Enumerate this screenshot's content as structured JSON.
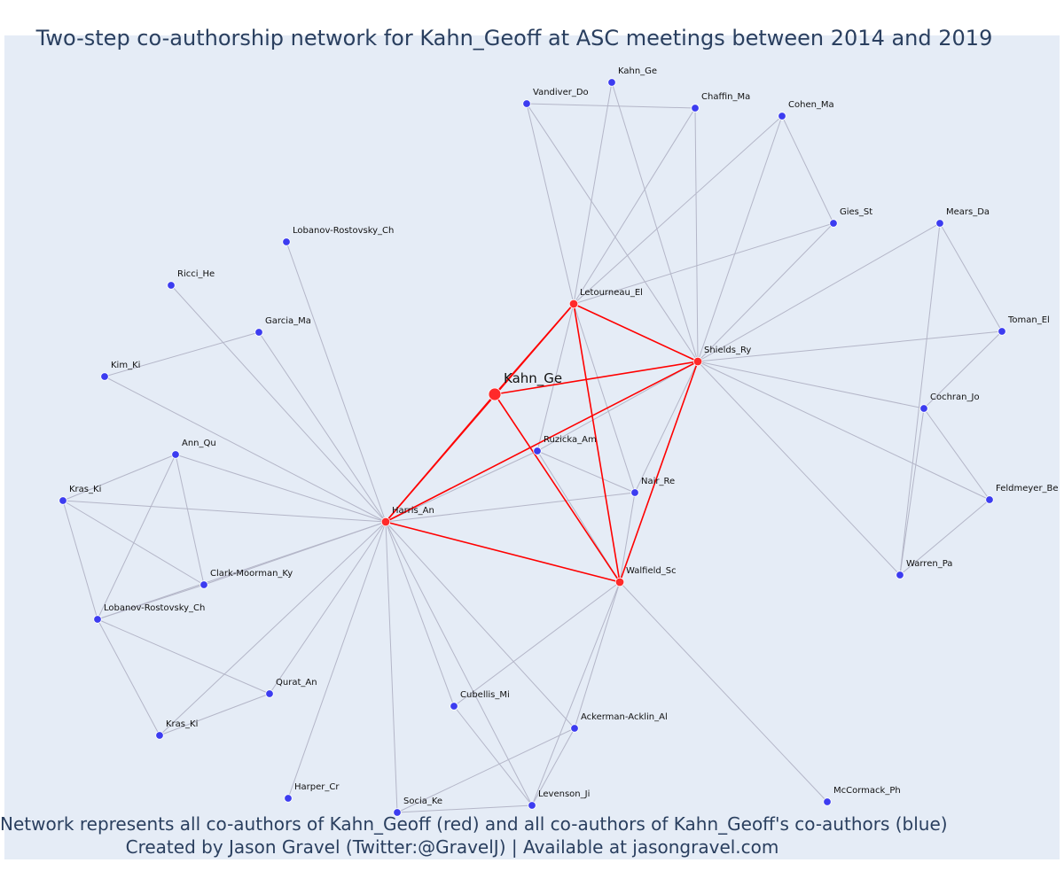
{
  "title": "Two-step co-authorship network for Kahn_Geoff at ASC meetings between 2014 and 2019",
  "footer": {
    "line1": "Network represents all co-authors of Kahn_Geoff (red) and all co-authors of Kahn_Geoff's co-authors (blue)",
    "line2": "Created by Jason Gravel (Twitter:@GravelJ) | Available at jasongravel.com"
  },
  "colors": {
    "background": "#e5ecf6",
    "coauthor": "#ff2a2a",
    "second_step": "#3c3cf0",
    "direct_edge": "#ff0000",
    "indirect_edge": "#b4b6c8",
    "text": "#2a3f5f"
  },
  "nodes": [
    {
      "id": "kahn_focus",
      "label": "Kahn_Ge",
      "group": "focus"
    },
    {
      "id": "letourneau",
      "label": "Letourneau_El",
      "group": "coauthor"
    },
    {
      "id": "shields",
      "label": "Shields_Ry",
      "group": "coauthor"
    },
    {
      "id": "harris",
      "label": "Harris_An",
      "group": "coauthor"
    },
    {
      "id": "walfield",
      "label": "Walfield_Sc",
      "group": "coauthor"
    },
    {
      "id": "kahn_ge2",
      "label": "Kahn_Ge",
      "group": "second"
    },
    {
      "id": "vandiver",
      "label": "Vandiver_Do",
      "group": "second"
    },
    {
      "id": "chaffin",
      "label": "Chaffin_Ma",
      "group": "second"
    },
    {
      "id": "cohen",
      "label": "Cohen_Ma",
      "group": "second"
    },
    {
      "id": "gies",
      "label": "Gies_St",
      "group": "second"
    },
    {
      "id": "mears",
      "label": "Mears_Da",
      "group": "second"
    },
    {
      "id": "toman",
      "label": "Toman_El",
      "group": "second"
    },
    {
      "id": "cochran",
      "label": "Cochran_Jo",
      "group": "second"
    },
    {
      "id": "feldmeyer",
      "label": "Feldmeyer_Be",
      "group": "second"
    },
    {
      "id": "warren",
      "label": "Warren_Pa",
      "group": "second"
    },
    {
      "id": "mccormack",
      "label": "McCormack_Ph",
      "group": "second"
    },
    {
      "id": "ruzicka",
      "label": "Ruzicka_Am",
      "group": "second"
    },
    {
      "id": "nair",
      "label": "Nair_Re",
      "group": "second"
    },
    {
      "id": "lobrost1",
      "label": "Lobanov-Rostovsky_Ch",
      "group": "second"
    },
    {
      "id": "ricci",
      "label": "Ricci_He",
      "group": "second"
    },
    {
      "id": "garcia",
      "label": "Garcia_Ma",
      "group": "second"
    },
    {
      "id": "kim",
      "label": "Kim_Ki",
      "group": "second"
    },
    {
      "id": "annqu",
      "label": "Ann_Qu",
      "group": "second"
    },
    {
      "id": "kras1",
      "label": "Kras_Ki",
      "group": "second"
    },
    {
      "id": "clark",
      "label": "Clark-Moorman_Ky",
      "group": "second"
    },
    {
      "id": "lobrost2",
      "label": "Lobanov-Rostovsky_Ch",
      "group": "second"
    },
    {
      "id": "qurat",
      "label": "Qurat_An",
      "group": "second"
    },
    {
      "id": "kras2",
      "label": "Kras_Ki",
      "group": "second"
    },
    {
      "id": "harper",
      "label": "Harper_Cr",
      "group": "second"
    },
    {
      "id": "socia",
      "label": "Socia_Ke",
      "group": "second"
    },
    {
      "id": "cubellis",
      "label": "Cubellis_Mi",
      "group": "second"
    },
    {
      "id": "ackerman",
      "label": "Ackerman-Acklin_Al",
      "group": "second"
    },
    {
      "id": "levenson",
      "label": "Levenson_Ji",
      "group": "second"
    }
  ],
  "direct_edges": [
    [
      "kahn_focus",
      "letourneau"
    ],
    [
      "kahn_focus",
      "shields"
    ],
    [
      "kahn_focus",
      "harris"
    ],
    [
      "kahn_focus",
      "walfield"
    ],
    [
      "letourneau",
      "shields"
    ],
    [
      "letourneau",
      "harris"
    ],
    [
      "letourneau",
      "walfield"
    ],
    [
      "shields",
      "harris"
    ],
    [
      "shields",
      "walfield"
    ],
    [
      "harris",
      "walfield"
    ]
  ],
  "indirect_edges": [
    [
      "letourneau",
      "vandiver"
    ],
    [
      "letourneau",
      "kahn_ge2"
    ],
    [
      "letourneau",
      "chaffin"
    ],
    [
      "letourneau",
      "cohen"
    ],
    [
      "letourneau",
      "gies"
    ],
    [
      "letourneau",
      "ruzicka"
    ],
    [
      "letourneau",
      "nair"
    ],
    [
      "shields",
      "vandiver"
    ],
    [
      "shields",
      "kahn_ge2"
    ],
    [
      "shields",
      "chaffin"
    ],
    [
      "shields",
      "cohen"
    ],
    [
      "shields",
      "gies"
    ],
    [
      "shields",
      "mears"
    ],
    [
      "shields",
      "toman"
    ],
    [
      "shields",
      "cochran"
    ],
    [
      "shields",
      "feldmeyer"
    ],
    [
      "shields",
      "warren"
    ],
    [
      "shields",
      "ruzicka"
    ],
    [
      "shields",
      "nair"
    ],
    [
      "vandiver",
      "chaffin"
    ],
    [
      "cohen",
      "gies"
    ],
    [
      "mears",
      "toman"
    ],
    [
      "mears",
      "warren"
    ],
    [
      "toman",
      "cochran"
    ],
    [
      "cochran",
      "feldmeyer"
    ],
    [
      "cochran",
      "warren"
    ],
    [
      "feldmeyer",
      "warren"
    ],
    [
      "harris",
      "lobrost1"
    ],
    [
      "harris",
      "ricci"
    ],
    [
      "harris",
      "garcia"
    ],
    [
      "harris",
      "kim"
    ],
    [
      "harris",
      "annqu"
    ],
    [
      "harris",
      "kras1"
    ],
    [
      "harris",
      "clark"
    ],
    [
      "harris",
      "lobrost2"
    ],
    [
      "harris",
      "qurat"
    ],
    [
      "harris",
      "kras2"
    ],
    [
      "harris",
      "harper"
    ],
    [
      "harris",
      "socia"
    ],
    [
      "harris",
      "cubellis"
    ],
    [
      "harris",
      "ackerman"
    ],
    [
      "harris",
      "levenson"
    ],
    [
      "harris",
      "ruzicka"
    ],
    [
      "harris",
      "nair"
    ],
    [
      "kim",
      "garcia"
    ],
    [
      "annqu",
      "kras1"
    ],
    [
      "annqu",
      "clark"
    ],
    [
      "annqu",
      "lobrost2"
    ],
    [
      "kras1",
      "clark"
    ],
    [
      "kras1",
      "lobrost2"
    ],
    [
      "clark",
      "lobrost2"
    ],
    [
      "lobrost2",
      "qurat"
    ],
    [
      "lobrost2",
      "kras2"
    ],
    [
      "qurat",
      "kras2"
    ],
    [
      "walfield",
      "mccormack"
    ],
    [
      "walfield",
      "cubellis"
    ],
    [
      "walfield",
      "ackerman"
    ],
    [
      "walfield",
      "levenson"
    ],
    [
      "walfield",
      "ruzicka"
    ],
    [
      "walfield",
      "nair"
    ],
    [
      "ruzicka",
      "nair"
    ],
    [
      "cubellis",
      "levenson"
    ],
    [
      "socia",
      "levenson"
    ],
    [
      "socia",
      "ackerman"
    ],
    [
      "ackerman",
      "levenson"
    ]
  ]
}
